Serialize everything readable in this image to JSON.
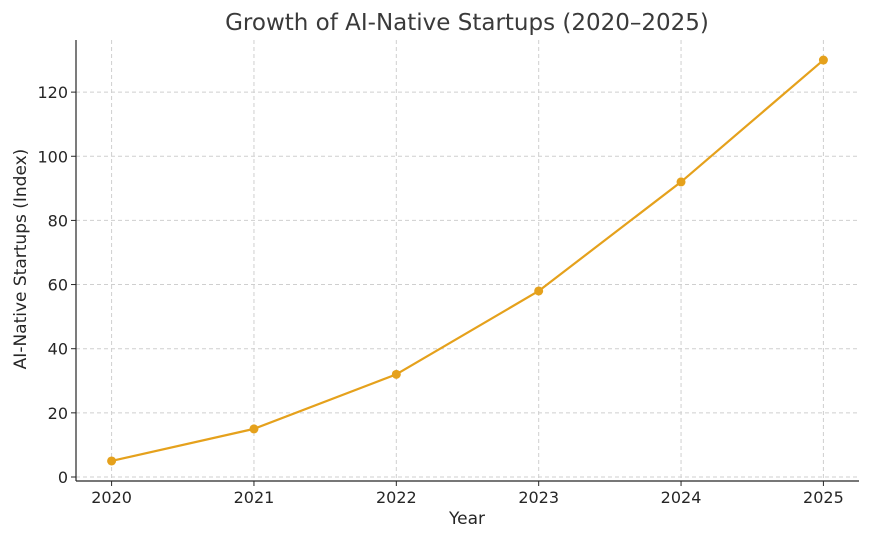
{
  "chart_data": {
    "type": "line",
    "title": "Growth of AI-Native Startups (2020–2025)",
    "xlabel": "Year",
    "ylabel": "AI-Native Startups (Index)",
    "x": [
      "2020",
      "2021",
      "2022",
      "2023",
      "2024",
      "2025"
    ],
    "series": [
      {
        "values": [
          5,
          15,
          32,
          58,
          92,
          130
        ],
        "color": "#E5A11C"
      }
    ],
    "yticks": [
      0,
      20,
      40,
      60,
      80,
      100,
      120
    ],
    "ylim": [
      -1.25,
      136.25
    ],
    "grid": true,
    "marker": "circle",
    "legend": "none"
  }
}
